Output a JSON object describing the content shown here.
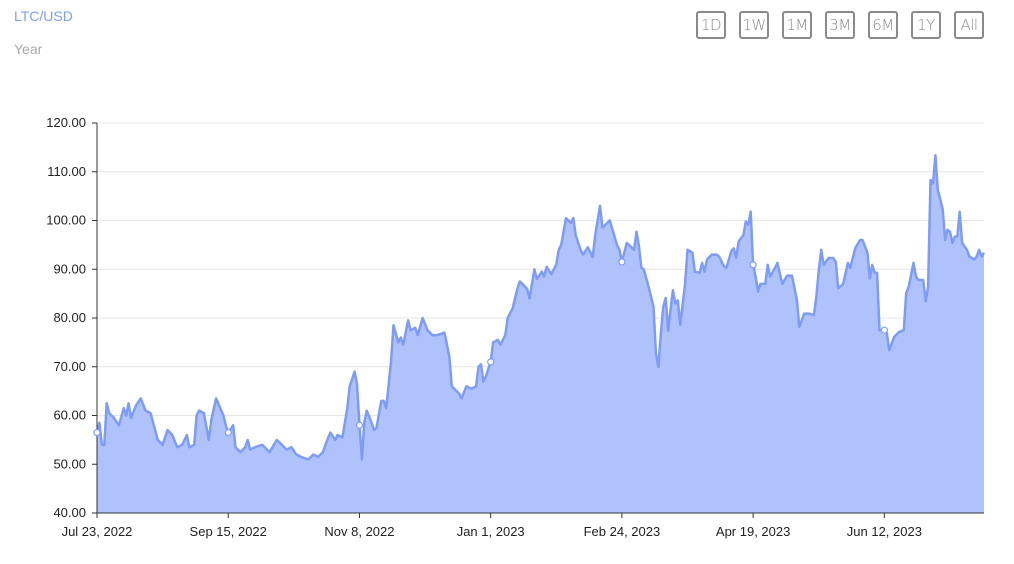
{
  "header": {
    "title": "LTC/USD",
    "subtitle": "Year"
  },
  "range_buttons": [
    "1D",
    "1W",
    "1M",
    "3M",
    "6M",
    "1Y",
    "All"
  ],
  "colors": {
    "line": "#7f9cf5",
    "fill": "#afc2fb",
    "title": "#7f9cf5"
  },
  "chart_data": {
    "type": "area",
    "title": "LTC/USD",
    "subtitle": "Year",
    "xlabel": "",
    "ylabel": "",
    "ylim": [
      40,
      120
    ],
    "xlim": [
      "2022-07-23",
      "2023-07-23"
    ],
    "grid": true,
    "yticks": [
      "40.00",
      "50.00",
      "60.00",
      "70.00",
      "80.00",
      "90.00",
      "100.00",
      "110.00",
      "120.00"
    ],
    "xticks": [
      {
        "date": "2022-07-23",
        "label": "Jul 23, 2022"
      },
      {
        "date": "2022-09-15",
        "label": "Sep 15, 2022"
      },
      {
        "date": "2022-11-08",
        "label": "Nov 8, 2022"
      },
      {
        "date": "2023-01-01",
        "label": "Jan 1, 2023"
      },
      {
        "date": "2023-02-24",
        "label": "Feb 24, 2023"
      },
      {
        "date": "2023-04-19",
        "label": "Apr 19, 2023"
      },
      {
        "date": "2023-06-12",
        "label": "Jun 12, 2023"
      }
    ],
    "points": [
      [
        "2022-07-23",
        56.5
      ],
      [
        "2022-07-24",
        58.5
      ],
      [
        "2022-07-25",
        54
      ],
      [
        "2022-07-26",
        54
      ],
      [
        "2022-07-27",
        62.5
      ],
      [
        "2022-07-28",
        60.5
      ],
      [
        "2022-07-30",
        59.5
      ],
      [
        "2022-08-01",
        58
      ],
      [
        "2022-08-03",
        61.5
      ],
      [
        "2022-08-04",
        60
      ],
      [
        "2022-08-05",
        62.5
      ],
      [
        "2022-08-06",
        59.5
      ],
      [
        "2022-08-08",
        62
      ],
      [
        "2022-08-10",
        63.5
      ],
      [
        "2022-08-12",
        61
      ],
      [
        "2022-08-14",
        60.5
      ],
      [
        "2022-08-17",
        55
      ],
      [
        "2022-08-19",
        54
      ],
      [
        "2022-08-21",
        57
      ],
      [
        "2022-08-23",
        56
      ],
      [
        "2022-08-25",
        53.5
      ],
      [
        "2022-08-27",
        54
      ],
      [
        "2022-08-29",
        56
      ],
      [
        "2022-08-30",
        53.5
      ],
      [
        "2022-09-01",
        54
      ],
      [
        "2022-09-02",
        60
      ],
      [
        "2022-09-03",
        61
      ],
      [
        "2022-09-05",
        60.5
      ],
      [
        "2022-09-07",
        55
      ],
      [
        "2022-09-08",
        59
      ],
      [
        "2022-09-10",
        63.5
      ],
      [
        "2022-09-13",
        60
      ],
      [
        "2022-09-14",
        58
      ],
      [
        "2022-09-15",
        56.5
      ],
      [
        "2022-09-17",
        58
      ],
      [
        "2022-09-18",
        53.5
      ],
      [
        "2022-09-20",
        52.5
      ],
      [
        "2022-09-22",
        53.5
      ],
      [
        "2022-09-23",
        55
      ],
      [
        "2022-09-24",
        53
      ],
      [
        "2022-09-26",
        53.5
      ],
      [
        "2022-09-29",
        54
      ],
      [
        "2022-10-02",
        52.5
      ],
      [
        "2022-10-05",
        55
      ],
      [
        "2022-10-06",
        54.5
      ],
      [
        "2022-10-09",
        53
      ],
      [
        "2022-10-11",
        53.5
      ],
      [
        "2022-10-13",
        52
      ],
      [
        "2022-10-15",
        51.5
      ],
      [
        "2022-10-18",
        51
      ],
      [
        "2022-10-20",
        52
      ],
      [
        "2022-10-22",
        51.5
      ],
      [
        "2022-10-24",
        52.5
      ],
      [
        "2022-10-25",
        54
      ],
      [
        "2022-10-27",
        56.5
      ],
      [
        "2022-10-29",
        55
      ],
      [
        "2022-10-30",
        56
      ],
      [
        "2022-11-01",
        55.5
      ],
      [
        "2022-11-03",
        61.5
      ],
      [
        "2022-11-04",
        66
      ],
      [
        "2022-11-06",
        69
      ],
      [
        "2022-11-07",
        66.5
      ],
      [
        "2022-11-08",
        58
      ],
      [
        "2022-11-09",
        51
      ],
      [
        "2022-11-10",
        58.5
      ],
      [
        "2022-11-11",
        61
      ],
      [
        "2022-11-13",
        58.5
      ],
      [
        "2022-11-14",
        57
      ],
      [
        "2022-11-15",
        57.5
      ],
      [
        "2022-11-17",
        63
      ],
      [
        "2022-11-18",
        63
      ],
      [
        "2022-11-19",
        61.5
      ],
      [
        "2022-11-21",
        71
      ],
      [
        "2022-11-22",
        78.5
      ],
      [
        "2022-11-24",
        75
      ],
      [
        "2022-11-25",
        76
      ],
      [
        "2022-11-26",
        74.5
      ],
      [
        "2022-11-28",
        79.5
      ],
      [
        "2022-11-29",
        77.5
      ],
      [
        "2022-12-01",
        78
      ],
      [
        "2022-12-02",
        76.5
      ],
      [
        "2022-12-04",
        80
      ],
      [
        "2022-12-06",
        77.5
      ],
      [
        "2022-12-08",
        76.5
      ],
      [
        "2022-12-10",
        76.5
      ],
      [
        "2022-12-13",
        77
      ],
      [
        "2022-12-15",
        72
      ],
      [
        "2022-12-16",
        66
      ],
      [
        "2022-12-19",
        64.5
      ],
      [
        "2022-12-20",
        63.5
      ],
      [
        "2022-12-22",
        66
      ],
      [
        "2022-12-24",
        65.5
      ],
      [
        "2022-12-26",
        66
      ],
      [
        "2022-12-27",
        70
      ],
      [
        "2022-12-28",
        70.5
      ],
      [
        "2022-12-29",
        67
      ],
      [
        "2022-12-30",
        68
      ],
      [
        "2023-01-01",
        71
      ],
      [
        "2023-01-02",
        75
      ],
      [
        "2023-01-04",
        75.5
      ],
      [
        "2023-01-05",
        74.5
      ],
      [
        "2023-01-07",
        76.5
      ],
      [
        "2023-01-08",
        80
      ],
      [
        "2023-01-10",
        82
      ],
      [
        "2023-01-12",
        86
      ],
      [
        "2023-01-13",
        87.5
      ],
      [
        "2023-01-16",
        86
      ],
      [
        "2023-01-17",
        84
      ],
      [
        "2023-01-19",
        90
      ],
      [
        "2023-01-20",
        88
      ],
      [
        "2023-01-22",
        89.5
      ],
      [
        "2023-01-23",
        88.5
      ],
      [
        "2023-01-24",
        90.5
      ],
      [
        "2023-01-26",
        89
      ],
      [
        "2023-01-28",
        91
      ],
      [
        "2023-01-29",
        94
      ],
      [
        "2023-01-30",
        95
      ],
      [
        "2023-02-01",
        100.5
      ],
      [
        "2023-02-03",
        99.5
      ],
      [
        "2023-02-04",
        100.5
      ],
      [
        "2023-02-05",
        97
      ],
      [
        "2023-02-07",
        94
      ],
      [
        "2023-02-08",
        93
      ],
      [
        "2023-02-10",
        94.5
      ],
      [
        "2023-02-12",
        92.5
      ],
      [
        "2023-02-13",
        97
      ],
      [
        "2023-02-15",
        103
      ],
      [
        "2023-02-16",
        98.5
      ],
      [
        "2023-02-18",
        99.5
      ],
      [
        "2023-02-19",
        100
      ],
      [
        "2023-02-22",
        95
      ],
      [
        "2023-02-23",
        94
      ],
      [
        "2023-02-24",
        91.5
      ],
      [
        "2023-02-26",
        95.4
      ],
      [
        "2023-03-01",
        94
      ],
      [
        "2023-03-02",
        97.7
      ],
      [
        "2023-03-03",
        94.8
      ],
      [
        "2023-03-04",
        90.3
      ],
      [
        "2023-03-05",
        90
      ],
      [
        "2023-03-07",
        86.4
      ],
      [
        "2023-03-09",
        82.3
      ],
      [
        "2023-03-10",
        72.8
      ],
      [
        "2023-03-11",
        70
      ],
      [
        "2023-03-12",
        76.7
      ],
      [
        "2023-03-13",
        82.3
      ],
      [
        "2023-03-14",
        84.1
      ],
      [
        "2023-03-15",
        77.4
      ],
      [
        "2023-03-17",
        85.7
      ],
      [
        "2023-03-18",
        83
      ],
      [
        "2023-03-19",
        83.6
      ],
      [
        "2023-03-20",
        78.6
      ],
      [
        "2023-03-22",
        87
      ],
      [
        "2023-03-23",
        94
      ],
      [
        "2023-03-24",
        93.7
      ],
      [
        "2023-03-25",
        93.4
      ],
      [
        "2023-03-26",
        89.5
      ],
      [
        "2023-03-28",
        89.3
      ],
      [
        "2023-03-29",
        91.3
      ],
      [
        "2023-03-30",
        89.5
      ],
      [
        "2023-03-31",
        92
      ],
      [
        "2023-04-02",
        93
      ],
      [
        "2023-04-04",
        93
      ],
      [
        "2023-04-05",
        92.6
      ],
      [
        "2023-04-07",
        90.6
      ],
      [
        "2023-04-08",
        90.3
      ],
      [
        "2023-04-10",
        93.7
      ],
      [
        "2023-04-11",
        94.3
      ],
      [
        "2023-04-12",
        92.3
      ],
      [
        "2023-04-13",
        95.7
      ],
      [
        "2023-04-15",
        97
      ],
      [
        "2023-04-16",
        99.8
      ],
      [
        "2023-04-17",
        99.1
      ],
      [
        "2023-04-18",
        101.8
      ],
      [
        "2023-04-19",
        90.9
      ],
      [
        "2023-04-20",
        88.5
      ],
      [
        "2023-04-21",
        85.4
      ],
      [
        "2023-04-22",
        87
      ],
      [
        "2023-04-24",
        87
      ],
      [
        "2023-04-25",
        90.9
      ],
      [
        "2023-04-26",
        88.5
      ],
      [
        "2023-04-28",
        90.3
      ],
      [
        "2023-04-29",
        91.3
      ],
      [
        "2023-05-01",
        87
      ],
      [
        "2023-05-03",
        88.7
      ],
      [
        "2023-05-05",
        88.7
      ],
      [
        "2023-05-07",
        83.7
      ],
      [
        "2023-05-08",
        78.2
      ],
      [
        "2023-05-10",
        80.9
      ],
      [
        "2023-05-12",
        80.9
      ],
      [
        "2023-05-14",
        80.6
      ],
      [
        "2023-05-15",
        84.3
      ],
      [
        "2023-05-16",
        89.8
      ],
      [
        "2023-05-17",
        94
      ],
      [
        "2023-05-18",
        90.9
      ],
      [
        "2023-05-20",
        92.3
      ],
      [
        "2023-05-22",
        92.3
      ],
      [
        "2023-05-23",
        91.5
      ],
      [
        "2023-05-24",
        86.1
      ],
      [
        "2023-05-26",
        87
      ],
      [
        "2023-05-28",
        91.3
      ],
      [
        "2023-05-29",
        90.3
      ],
      [
        "2023-05-31",
        94.3
      ],
      [
        "2023-06-02",
        96
      ],
      [
        "2023-06-03",
        96
      ],
      [
        "2023-06-05",
        93.4
      ],
      [
        "2023-06-06",
        88.1
      ],
      [
        "2023-06-07",
        90.9
      ],
      [
        "2023-06-08",
        89.3
      ],
      [
        "2023-06-09",
        89.3
      ],
      [
        "2023-06-10",
        77.5
      ],
      [
        "2023-06-12",
        77.5
      ],
      [
        "2023-06-13",
        76.9
      ],
      [
        "2023-06-14",
        73.4
      ],
      [
        "2023-06-16",
        76.1
      ],
      [
        "2023-06-18",
        77.1
      ],
      [
        "2023-06-20",
        77.5
      ],
      [
        "2023-06-21",
        85.1
      ],
      [
        "2023-06-22",
        86.4
      ],
      [
        "2023-06-24",
        91.3
      ],
      [
        "2023-06-25",
        88.5
      ],
      [
        "2023-06-26",
        87.8
      ],
      [
        "2023-06-28",
        87.8
      ],
      [
        "2023-06-29",
        83.4
      ],
      [
        "2023-06-30",
        86.4
      ],
      [
        "2023-07-01",
        108.3
      ],
      [
        "2023-07-02",
        107.6
      ],
      [
        "2023-07-03",
        113.4
      ],
      [
        "2023-07-04",
        106.2
      ],
      [
        "2023-07-05",
        104.3
      ],
      [
        "2023-07-06",
        102.3
      ],
      [
        "2023-07-07",
        96
      ],
      [
        "2023-07-08",
        98.1
      ],
      [
        "2023-07-09",
        97.7
      ],
      [
        "2023-07-10",
        95.4
      ],
      [
        "2023-07-11",
        96.7
      ],
      [
        "2023-07-12",
        96.7
      ],
      [
        "2023-07-13",
        101.8
      ],
      [
        "2023-07-14",
        95.4
      ],
      [
        "2023-07-16",
        94
      ],
      [
        "2023-07-17",
        92.6
      ],
      [
        "2023-07-19",
        92
      ],
      [
        "2023-07-20",
        92.6
      ],
      [
        "2023-07-21",
        94
      ],
      [
        "2023-07-22",
        92.6
      ],
      [
        "2023-07-23",
        93.4
      ]
    ]
  }
}
